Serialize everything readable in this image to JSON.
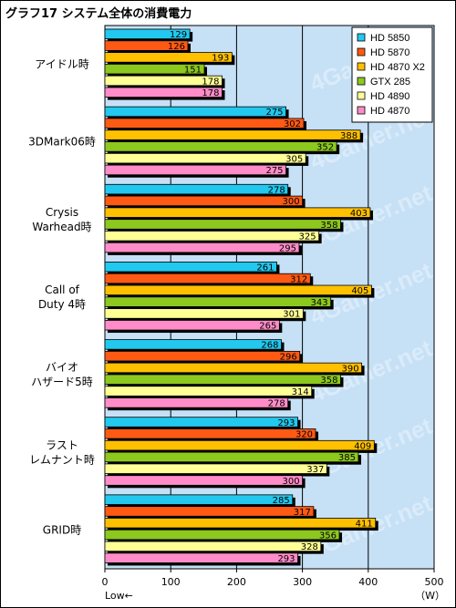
{
  "chart_data": {
    "type": "bar",
    "orientation": "horizontal",
    "title": "グラフ17 システム全体の消費電力",
    "categories": [
      "アイドル時",
      "3DMark06時",
      "Crysis\nWarhead時",
      "Call of\nDuty 4時",
      "バイオ\nハザード5時",
      "ラスト\nレムナント時",
      "GRID時"
    ],
    "series": [
      {
        "name": "HD 5850",
        "color": "#22c8ee",
        "values": [
          129,
          275,
          278,
          261,
          268,
          293,
          285
        ]
      },
      {
        "name": "HD 5870",
        "color": "#ff5a14",
        "values": [
          126,
          302,
          300,
          312,
          296,
          320,
          317
        ]
      },
      {
        "name": "HD 4870 X2",
        "color": "#ffc000",
        "values": [
          193,
          388,
          403,
          405,
          390,
          409,
          411
        ]
      },
      {
        "name": "GTX 285",
        "color": "#8cc81e",
        "values": [
          151,
          352,
          358,
          343,
          358,
          385,
          356
        ]
      },
      {
        "name": "HD 4890",
        "color": "#ffff96",
        "values": [
          178,
          305,
          325,
          301,
          314,
          337,
          328
        ]
      },
      {
        "name": "HD 4870",
        "color": "#ff8cc8",
        "values": [
          178,
          275,
          295,
          265,
          278,
          300,
          293
        ]
      }
    ],
    "xlim": [
      0,
      500
    ],
    "xticks": [
      0,
      100,
      200,
      300,
      400,
      500
    ],
    "xunit": "（W）",
    "xnote": "Low←",
    "watermark": "4Gamer.net",
    "grid": true,
    "legend": "top-right",
    "plot_background": "#c6e0f6"
  }
}
